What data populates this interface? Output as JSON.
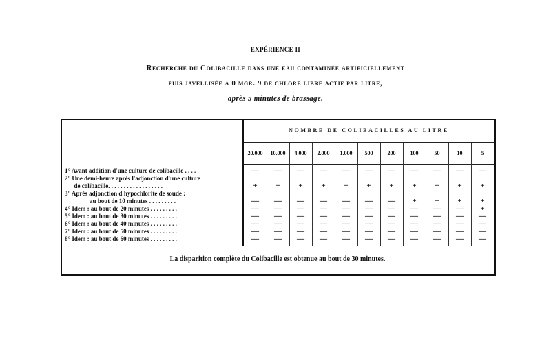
{
  "heading": "EXPÉRIENCE II",
  "title_line1": "Recherche du Colibacille dans une eau contaminée artificiellement",
  "title_line2": "puis javellisée a 0 mgr. 9 de chlore libre actif par litre,",
  "title_line3": "après 5 minutes de brassage.",
  "table": {
    "group_header": "NOMBRE DE COLIBACILLES AU LITRE",
    "columns": [
      "20.000",
      "10.000",
      "4.000",
      "2.000",
      "1.000",
      "500",
      "200",
      "100",
      "50",
      "10",
      "5"
    ],
    "label_lines": [
      "1° Avant addition d'une culture de colibacille . . . .",
      "2° Une demi-heure après l'adjonction d'une culture",
      "      de colibacille. . . . . . . . . . . . . . . . . .",
      "3° Après adjonction d'hypochlorite de soude :",
      "                au bout de 10 minutes . . . . . . . . .",
      "4° Idem : au bout de 20 minutes . . . . . . . . .",
      "5° Idem : au bout de 30 minutes . . . . . . . . .",
      "6° Idem : au bout de 40 minutes . . . . . . . . .",
      "7° Idem : au bout de 50 minutes . . . . . . . . .",
      "8° Idem : au bout de 60 minutes . . . . . . . . ."
    ],
    "rows": [
      {
        "label": "1°",
        "results": [
          "—",
          "—",
          "—",
          "—",
          "—",
          "—",
          "—",
          "—",
          "—",
          "—",
          "—"
        ]
      },
      {
        "label": "2°",
        "results": [
          "+",
          "+",
          "+",
          "+",
          "+",
          "+",
          "+",
          "+",
          "+",
          "+",
          "+"
        ]
      },
      {
        "label": "3° 10 minutes",
        "results": [
          "—",
          "—",
          "—",
          "—",
          "—",
          "—",
          "—",
          "+",
          "+",
          "+",
          "+"
        ]
      },
      {
        "label": "4° 20 minutes",
        "results": [
          "—",
          "—",
          "—",
          "—",
          "—",
          "—",
          "—",
          "—",
          "—",
          "—",
          "+"
        ]
      },
      {
        "label": "5° 30 minutes",
        "results": [
          "—",
          "—",
          "—",
          "—",
          "—",
          "—",
          "—",
          "—",
          "—",
          "—",
          "—"
        ]
      },
      {
        "label": "6° 40 minutes",
        "results": [
          "—",
          "—",
          "—",
          "—",
          "—",
          "—",
          "—",
          "—",
          "—",
          "—",
          "—"
        ]
      },
      {
        "label": "7° 50 minutes",
        "results": [
          "—",
          "—",
          "—",
          "—",
          "—",
          "—",
          "—",
          "—",
          "—",
          "—",
          "—"
        ]
      },
      {
        "label": "8° 60 minutes",
        "results": [
          "—",
          "—",
          "—",
          "—",
          "—",
          "—",
          "—",
          "—",
          "—",
          "—",
          "—"
        ]
      }
    ],
    "footer": "La disparition complète du Colibacille est obtenue au bout de 30 minutes."
  }
}
